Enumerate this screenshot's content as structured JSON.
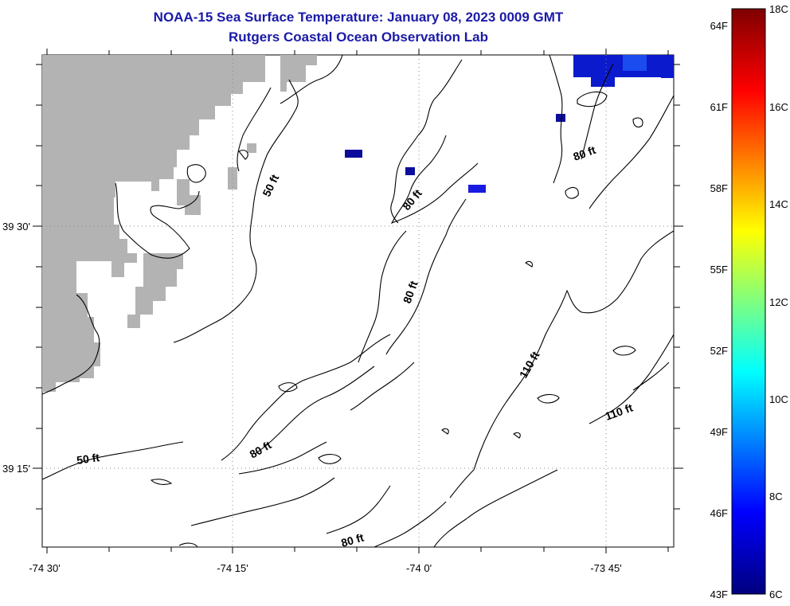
{
  "title": {
    "line1": "NOAA-15 Sea Surface Temperature:  January 08, 2023 0009 GMT",
    "line2": "Rutgers Coastal Ocean Observation Lab"
  },
  "axes": {
    "x_ticks": [
      "-74 30'",
      "-74 15'",
      "-74 0'",
      "-73 45'"
    ],
    "y_ticks": [
      "39 30'",
      "39 15'"
    ]
  },
  "contour_labels": {
    "c50a": "50 ft",
    "c50b": "50 ft",
    "c80a": "80 ft",
    "c80b": "80 ft",
    "c80c": "80 ft",
    "c80d": "80 ft",
    "c80e": "80 ft",
    "c110a": "110 ft",
    "c110b": "110 ft"
  },
  "colorbar": {
    "fahrenheit": [
      "64F",
      "61F",
      "58F",
      "55F",
      "52F",
      "49F",
      "46F",
      "43F"
    ],
    "celsius": [
      "18C",
      "16C",
      "14C",
      "12C",
      "10C",
      "8C",
      "6C"
    ],
    "colors": [
      "#7f0000",
      "#ff0000",
      "#ffff00",
      "#00ffff",
      "#0000ff",
      "#00007f"
    ]
  },
  "colors": {
    "title": "#1a1aa8",
    "land": "#b3b3b3",
    "cold_pixels": "#1010d8"
  }
}
